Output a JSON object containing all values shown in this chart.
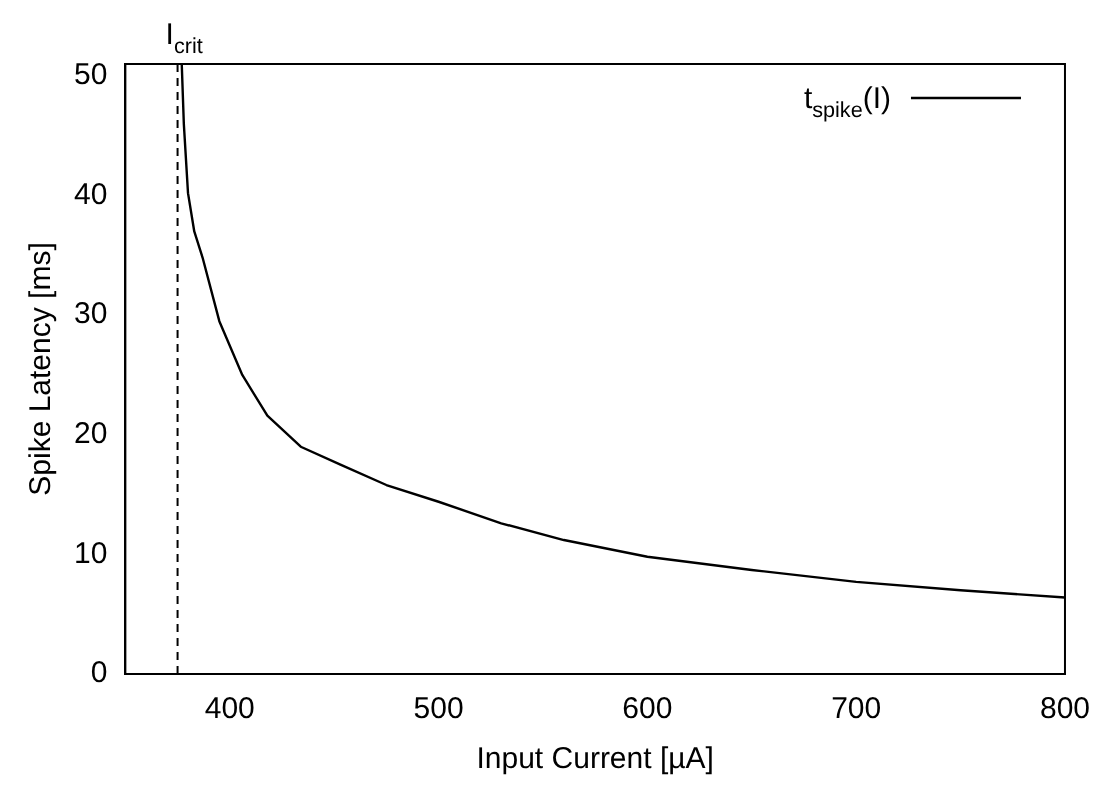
{
  "chart_data": {
    "type": "line",
    "xlabel": "Input Current [µA]",
    "ylabel": "Spike Latency [ms]",
    "xlim": [
      350,
      800
    ],
    "xticks": [
      400,
      500,
      600,
      700,
      800
    ],
    "ylim": [
      0,
      51
    ],
    "yticks": [
      0,
      10,
      20,
      30,
      40,
      50
    ],
    "grid": false,
    "legend": "top right",
    "marker": "none",
    "line_style": "solid",
    "ref_lines": [
      {
        "axis": "x",
        "value": 375,
        "label": "I$_{crit}$",
        "color": "#000000",
        "line_style": "dashed"
      }
    ],
    "series": [
      {
        "name": "t$_{spike}$(I)",
        "color": "#000000",
        "x": [
          377,
          378,
          380,
          383,
          387,
          395,
          406,
          418,
          434,
          453,
          475,
          500,
          530,
          560,
          600,
          650,
          700,
          750,
          800
        ],
        "values": [
          51,
          46,
          40.2,
          37,
          34.8,
          29.5,
          25,
          21.6,
          19,
          17.5,
          15.8,
          14.4,
          12.6,
          11.2,
          9.8,
          8.7,
          7.7,
          7.0,
          6.4
        ]
      }
    ]
  }
}
